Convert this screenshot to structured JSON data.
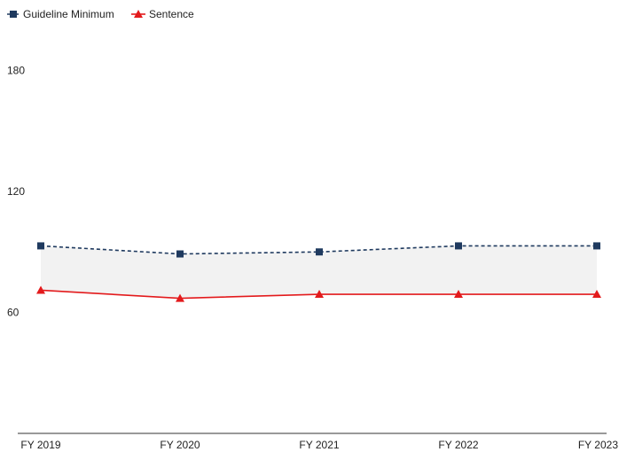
{
  "chart_data": {
    "type": "line",
    "categories": [
      "FY 2019",
      "FY 2020",
      "FY 2021",
      "FY 2022",
      "FY 2023"
    ],
    "series": [
      {
        "name": "Guideline Minimum",
        "values": [
          93,
          89,
          90,
          93,
          93
        ],
        "color": "#1f3a5f",
        "line_style": "dashed",
        "marker": "square"
      },
      {
        "name": "Sentence",
        "values": [
          71,
          67,
          69,
          69,
          69
        ],
        "color": "#e31a1c",
        "line_style": "solid",
        "marker": "triangle"
      }
    ],
    "yticks": [
      60,
      120,
      180
    ],
    "ylim": [
      0,
      200
    ],
    "shaded_band_between_series": true,
    "band_color": "#f2f2f2",
    "grid": false,
    "legend_position": "top-left"
  }
}
